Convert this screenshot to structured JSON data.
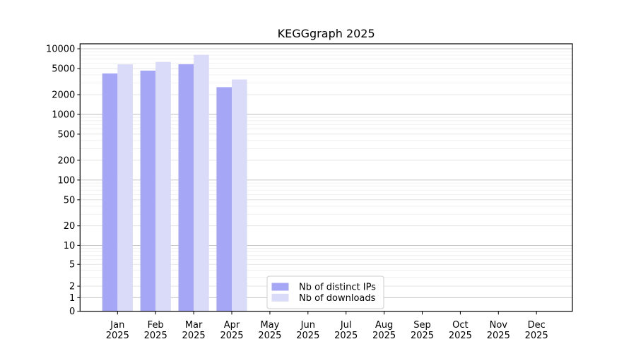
{
  "chart_data": {
    "type": "bar",
    "title": "KEGGgraph 2025",
    "categories": [
      "Jan 2025",
      "Feb 2025",
      "Mar 2025",
      "Apr 2025",
      "May 2025",
      "Jun 2025",
      "Jul 2025",
      "Aug 2025",
      "Sep 2025",
      "Oct 2025",
      "Nov 2025",
      "Dec 2025"
    ],
    "series": [
      {
        "name": "Nb of distinct IPs",
        "color": "#a6a6f7",
        "values": [
          4200,
          4650,
          5800,
          2600,
          0,
          0,
          0,
          0,
          0,
          0,
          0,
          0
        ]
      },
      {
        "name": "Nb of downloads",
        "color": "#dadaf9",
        "values": [
          5800,
          6300,
          8100,
          3400,
          0,
          0,
          0,
          0,
          0,
          0,
          0,
          0
        ]
      }
    ],
    "xlabel": "",
    "ylabel": "",
    "yscale": "asinh-log (log-like axis including 0)",
    "yticks": [
      0,
      1,
      2,
      5,
      10,
      20,
      50,
      100,
      200,
      500,
      1000,
      2000,
      5000,
      10000
    ],
    "ylim": [
      0,
      11900
    ],
    "grid": "horizontal, major decades darker + faint minors",
    "legend_position": "lower center inside plot",
    "colors": {
      "major_gridline": "#b3b3b3",
      "labeled_minor_gridline": "#dddddd",
      "minor_gridline": "#ededed",
      "axis_frame": "#000000",
      "legend_border": "#cccccc",
      "legend_background": "#ffffff"
    }
  }
}
